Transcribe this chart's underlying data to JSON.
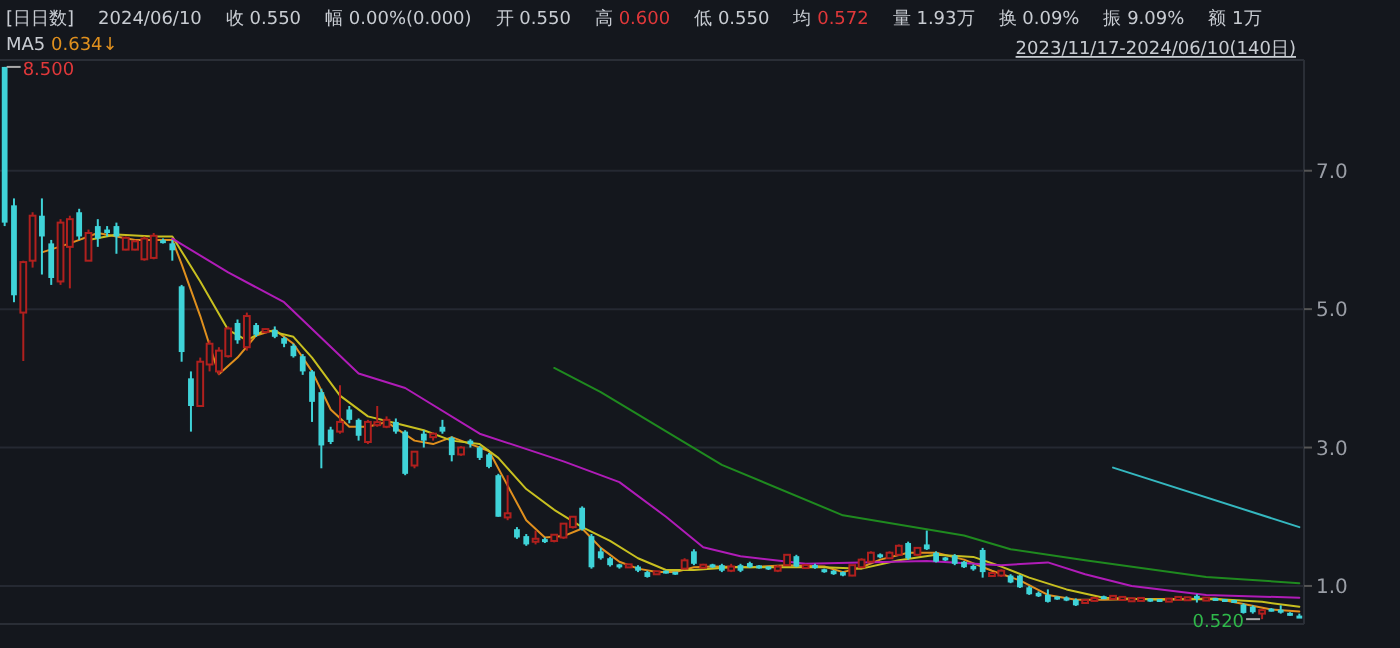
{
  "chart_data": {
    "type": "candlestick",
    "categories": [
      null,
      null,
      null,
      null,
      null,
      null,
      null,
      null,
      null,
      null,
      null,
      null,
      null,
      null,
      null,
      null,
      null,
      null,
      null,
      null,
      null,
      null,
      null,
      null,
      null,
      null,
      null,
      null,
      null,
      null,
      null,
      null,
      null,
      null,
      null,
      null,
      null,
      null,
      null,
      null,
      null,
      null,
      null,
      null,
      null,
      null,
      null,
      null,
      null,
      null,
      null,
      null,
      null,
      null,
      null,
      null,
      null,
      null,
      null,
      null,
      null,
      null,
      null,
      null,
      null,
      null,
      null,
      null,
      null,
      null,
      null,
      null,
      null,
      null,
      null,
      null,
      null,
      null,
      null,
      null,
      null,
      null,
      null,
      null,
      null,
      null,
      null,
      null,
      null,
      null,
      null,
      null,
      null,
      null,
      null,
      null,
      null,
      null,
      null,
      null,
      null,
      null,
      null,
      null,
      null,
      null,
      null,
      null,
      null,
      null,
      null,
      null,
      null,
      null,
      null,
      null,
      null,
      null,
      null,
      null,
      null,
      null,
      null,
      null,
      null,
      null,
      null,
      null,
      null,
      null,
      null,
      null,
      null,
      null,
      null,
      null,
      null,
      null,
      null,
      null
    ],
    "ohlc": [
      [
        8.5,
        8.5,
        6.2,
        6.25
      ],
      [
        6.5,
        6.6,
        5.1,
        5.2
      ],
      [
        4.95,
        5.7,
        4.25,
        5.68
      ],
      [
        5.7,
        6.4,
        5.6,
        6.35
      ],
      [
        6.35,
        6.6,
        5.5,
        6.05
      ],
      [
        5.95,
        6.0,
        5.35,
        5.45
      ],
      [
        5.4,
        6.3,
        5.35,
        6.25
      ],
      [
        5.9,
        6.35,
        5.3,
        6.3
      ],
      [
        6.4,
        6.45,
        6.0,
        6.05
      ],
      [
        5.7,
        6.15,
        5.7,
        6.1
      ],
      [
        6.2,
        6.3,
        5.9,
        6.02
      ],
      [
        6.15,
        6.2,
        6.05,
        6.1
      ],
      [
        6.2,
        6.25,
        5.8,
        6.05
      ],
      [
        5.86,
        6.05,
        5.85,
        6.03
      ],
      [
        5.86,
        6.0,
        5.85,
        5.98
      ],
      [
        5.72,
        6.05,
        5.7,
        6.02
      ],
      [
        5.74,
        6.1,
        5.72,
        6.06
      ],
      [
        5.98,
        6.02,
        5.95,
        5.97
      ],
      [
        5.95,
        6.0,
        5.7,
        5.85
      ],
      [
        5.33,
        5.35,
        4.24,
        4.38
      ],
      [
        4.0,
        4.1,
        3.23,
        3.6
      ],
      [
        3.6,
        4.3,
        3.6,
        4.24
      ],
      [
        4.2,
        4.55,
        4.1,
        4.5
      ],
      [
        4.1,
        4.45,
        4.05,
        4.4
      ],
      [
        4.32,
        4.75,
        4.3,
        4.72
      ],
      [
        4.8,
        4.85,
        4.5,
        4.55
      ],
      [
        4.45,
        4.95,
        4.4,
        4.9
      ],
      [
        4.77,
        4.8,
        4.6,
        4.63
      ],
      [
        4.68,
        4.72,
        4.65,
        4.7
      ],
      [
        4.7,
        4.75,
        4.58,
        4.6
      ],
      [
        4.58,
        4.6,
        4.45,
        4.5
      ],
      [
        4.47,
        4.5,
        4.3,
        4.32
      ],
      [
        4.32,
        4.35,
        4.05,
        4.1
      ],
      [
        4.1,
        4.12,
        3.37,
        3.66
      ],
      [
        3.8,
        3.85,
        2.7,
        3.03
      ],
      [
        3.26,
        3.3,
        3.05,
        3.08
      ],
      [
        3.23,
        3.9,
        3.2,
        3.37
      ],
      [
        3.55,
        3.6,
        3.35,
        3.4
      ],
      [
        3.4,
        3.42,
        3.1,
        3.17
      ],
      [
        3.08,
        3.4,
        3.05,
        3.37
      ],
      [
        3.33,
        3.6,
        3.3,
        3.36
      ],
      [
        3.3,
        3.45,
        3.28,
        3.4
      ],
      [
        3.37,
        3.42,
        3.2,
        3.23
      ],
      [
        3.23,
        3.25,
        2.6,
        2.62
      ],
      [
        2.74,
        2.95,
        2.7,
        2.94
      ],
      [
        3.2,
        3.25,
        3.0,
        3.1
      ],
      [
        3.15,
        3.22,
        3.1,
        3.2
      ],
      [
        3.3,
        3.4,
        3.2,
        3.23
      ],
      [
        3.14,
        3.16,
        2.8,
        2.89
      ],
      [
        2.9,
        3.02,
        2.88,
        3.0
      ],
      [
        3.1,
        3.12,
        3.0,
        3.05
      ],
      [
        3.0,
        3.02,
        2.82,
        2.85
      ],
      [
        2.9,
        2.92,
        2.7,
        2.72
      ],
      [
        2.6,
        2.62,
        2.0,
        2.0
      ],
      [
        1.99,
        2.6,
        1.95,
        2.05
      ],
      [
        1.82,
        1.85,
        1.68,
        1.7
      ],
      [
        1.72,
        1.75,
        1.58,
        1.6
      ],
      [
        1.65,
        1.8,
        1.6,
        1.67
      ],
      [
        1.66,
        1.7,
        1.62,
        1.65
      ],
      [
        1.65,
        1.75,
        1.63,
        1.74
      ],
      [
        1.7,
        1.9,
        1.68,
        1.9
      ],
      [
        1.85,
        2.0,
        1.83,
        2.0
      ],
      [
        2.13,
        2.15,
        1.8,
        1.82
      ],
      [
        1.72,
        1.75,
        1.25,
        1.27
      ],
      [
        1.5,
        1.55,
        1.38,
        1.4
      ],
      [
        1.4,
        1.42,
        1.28,
        1.3
      ],
      [
        1.3,
        1.32,
        1.25,
        1.28
      ],
      [
        1.28,
        1.32,
        1.26,
        1.3
      ],
      [
        1.28,
        1.3,
        1.2,
        1.22
      ],
      [
        1.2,
        1.22,
        1.12,
        1.13
      ],
      [
        1.18,
        1.22,
        1.17,
        1.2
      ],
      [
        1.2,
        1.22,
        1.18,
        1.2
      ],
      [
        1.19,
        1.2,
        1.16,
        1.18
      ],
      [
        1.25,
        1.4,
        1.24,
        1.37
      ],
      [
        1.5,
        1.53,
        1.3,
        1.32
      ],
      [
        1.27,
        1.32,
        1.25,
        1.3
      ],
      [
        1.3,
        1.32,
        1.26,
        1.28
      ],
      [
        1.3,
        1.32,
        1.2,
        1.22
      ],
      [
        1.22,
        1.32,
        1.2,
        1.28
      ],
      [
        1.3,
        1.32,
        1.2,
        1.22
      ],
      [
        1.33,
        1.35,
        1.26,
        1.27
      ],
      [
        1.28,
        1.3,
        1.25,
        1.27
      ],
      [
        1.27,
        1.28,
        1.23,
        1.25
      ],
      [
        1.22,
        1.3,
        1.2,
        1.28
      ],
      [
        1.3,
        1.45,
        1.29,
        1.45
      ],
      [
        1.43,
        1.45,
        1.27,
        1.28
      ],
      [
        1.26,
        1.32,
        1.25,
        1.3
      ],
      [
        1.3,
        1.32,
        1.25,
        1.26
      ],
      [
        1.24,
        1.25,
        1.19,
        1.2
      ],
      [
        1.22,
        1.23,
        1.16,
        1.17
      ],
      [
        1.2,
        1.21,
        1.14,
        1.15
      ],
      [
        1.15,
        1.3,
        1.14,
        1.3
      ],
      [
        1.27,
        1.4,
        1.26,
        1.38
      ],
      [
        1.35,
        1.5,
        1.34,
        1.48
      ],
      [
        1.45,
        1.47,
        1.4,
        1.42
      ],
      [
        1.4,
        1.5,
        1.39,
        1.48
      ],
      [
        1.45,
        1.6,
        1.44,
        1.58
      ],
      [
        1.62,
        1.64,
        1.38,
        1.4
      ],
      [
        1.45,
        1.56,
        1.44,
        1.55
      ],
      [
        1.6,
        1.8,
        1.52,
        1.53
      ],
      [
        1.48,
        1.5,
        1.34,
        1.35
      ],
      [
        1.4,
        1.42,
        1.36,
        1.38
      ],
      [
        1.44,
        1.46,
        1.3,
        1.32
      ],
      [
        1.35,
        1.36,
        1.26,
        1.27
      ],
      [
        1.29,
        1.31,
        1.22,
        1.24
      ],
      [
        1.52,
        1.55,
        1.12,
        1.2
      ],
      [
        1.15,
        1.2,
        1.14,
        1.18
      ],
      [
        1.15,
        1.24,
        1.13,
        1.22
      ],
      [
        1.15,
        1.17,
        1.04,
        1.05
      ],
      [
        1.15,
        1.16,
        0.97,
        0.98
      ],
      [
        0.98,
        1.0,
        0.87,
        0.88
      ],
      [
        0.9,
        0.92,
        0.84,
        0.85
      ],
      [
        0.87,
        0.95,
        0.76,
        0.77
      ],
      [
        0.83,
        0.85,
        0.8,
        0.82
      ],
      [
        0.83,
        0.85,
        0.78,
        0.79
      ],
      [
        0.8,
        0.82,
        0.71,
        0.72
      ],
      [
        0.76,
        0.8,
        0.75,
        0.79
      ],
      [
        0.79,
        0.83,
        0.78,
        0.82
      ],
      [
        0.84,
        0.86,
        0.81,
        0.82
      ],
      [
        0.82,
        0.86,
        0.81,
        0.85
      ],
      [
        0.81,
        0.85,
        0.8,
        0.83
      ],
      [
        0.79,
        0.83,
        0.78,
        0.81
      ],
      [
        0.8,
        0.82,
        0.79,
        0.81
      ],
      [
        0.81,
        0.82,
        0.77,
        0.78
      ],
      [
        0.8,
        0.81,
        0.77,
        0.78
      ],
      [
        0.79,
        0.82,
        0.78,
        0.8
      ],
      [
        0.8,
        0.85,
        0.79,
        0.84
      ],
      [
        0.8,
        0.84,
        0.79,
        0.83
      ],
      [
        0.85,
        0.88,
        0.76,
        0.82
      ],
      [
        0.8,
        0.83,
        0.79,
        0.82
      ],
      [
        0.81,
        0.82,
        0.79,
        0.8
      ],
      [
        0.8,
        0.81,
        0.77,
        0.78
      ],
      [
        0.78,
        0.8,
        0.76,
        0.77
      ],
      [
        0.73,
        0.75,
        0.6,
        0.61
      ],
      [
        0.7,
        0.72,
        0.6,
        0.62
      ],
      [
        0.6,
        0.66,
        0.52,
        0.65
      ],
      [
        0.66,
        0.68,
        0.63,
        0.64
      ],
      [
        0.65,
        0.72,
        0.6,
        0.62
      ],
      [
        0.6,
        0.62,
        0.57,
        0.58
      ],
      [
        0.55,
        0.6,
        0.55,
        0.55
      ]
    ],
    "series": [
      {
        "type": "line",
        "name": "MA5",
        "color": "#e0901e",
        "values": [
          null,
          null,
          null,
          null,
          5.82,
          null,
          null,
          5.95,
          null,
          null,
          6.1,
          null,
          null,
          null,
          6.0,
          null,
          null,
          null,
          6.0,
          5.65,
          null,
          4.9,
          null,
          4.06,
          null,
          4.3,
          null,
          4.62,
          null,
          4.7,
          null,
          4.5,
          null,
          4.1,
          null,
          3.55,
          null,
          3.3,
          null,
          3.3,
          null,
          3.37,
          null,
          null,
          3.1,
          null,
          3.05,
          null,
          3.15,
          null,
          3.05,
          null,
          2.95,
          null,
          2.45,
          null,
          1.95,
          null,
          1.7,
          null,
          1.72,
          null,
          1.83,
          null,
          1.55,
          null,
          1.35,
          null,
          1.25,
          null,
          1.2,
          null,
          1.2,
          null,
          1.27,
          null,
          1.28,
          null,
          null,
          null,
          1.27,
          null,
          null,
          null,
          1.3,
          null,
          null,
          null,
          1.28,
          null,
          1.2,
          null,
          1.27,
          null,
          1.38,
          null,
          null,
          1.48,
          null,
          null,
          1.48,
          null,
          null,
          1.38,
          null,
          null,
          1.22,
          null,
          null,
          1.08,
          null,
          null,
          0.87,
          null,
          null,
          0.8,
          null,
          null,
          0.8,
          null,
          null,
          null,
          0.81,
          null,
          null,
          null,
          0.81,
          null,
          null,
          null,
          0.82,
          null,
          null,
          0.74,
          null,
          null,
          0.66,
          null,
          null,
          0.63
        ]
      },
      {
        "type": "line",
        "color": "#c8c020",
        "values": [
          null,
          null,
          null,
          null,
          null,
          null,
          null,
          null,
          null,
          6.0,
          null,
          null,
          6.08,
          null,
          null,
          null,
          6.05,
          null,
          6.05,
          null,
          null,
          5.4,
          null,
          null,
          4.7,
          null,
          4.55,
          null,
          4.7,
          null,
          null,
          4.6,
          null,
          4.3,
          null,
          null,
          3.75,
          null,
          null,
          3.45,
          null,
          null,
          3.35,
          null,
          null,
          3.25,
          null,
          null,
          3.1,
          null,
          null,
          3.05,
          null,
          2.85,
          null,
          null,
          2.4,
          null,
          null,
          2.1,
          null,
          null,
          1.85,
          null,
          null,
          1.65,
          null,
          null,
          1.4,
          null,
          null,
          1.23,
          null,
          null,
          1.23,
          null,
          null,
          null,
          1.27,
          null,
          null,
          null,
          null,
          1.27,
          null,
          null,
          null,
          null,
          1.27,
          null,
          null,
          null,
          1.25,
          null,
          null,
          null,
          1.37,
          null,
          null,
          null,
          1.45,
          null,
          null,
          null,
          1.42,
          null,
          null,
          1.28,
          null,
          null,
          1.12,
          null,
          null,
          null,
          0.95,
          null,
          null,
          null,
          0.83,
          null,
          null,
          null,
          null,
          null,
          0.8,
          null,
          null,
          null,
          null,
          null,
          0.81,
          null,
          null,
          null,
          null,
          0.77,
          null,
          null,
          null,
          0.7
        ]
      },
      {
        "type": "line",
        "color": "#b01cb8",
        "values": [
          null,
          null,
          null,
          null,
          null,
          null,
          null,
          null,
          null,
          null,
          null,
          null,
          null,
          null,
          null,
          null,
          null,
          null,
          6.02,
          null,
          null,
          null,
          null,
          null,
          5.53,
          null,
          null,
          null,
          null,
          null,
          5.1,
          null,
          null,
          null,
          null,
          null,
          null,
          null,
          4.07,
          null,
          null,
          null,
          null,
          3.86,
          null,
          null,
          null,
          null,
          null,
          null,
          null,
          3.2,
          null,
          null,
          null,
          null,
          null,
          null,
          null,
          null,
          2.8,
          null,
          null,
          null,
          null,
          null,
          2.5,
          null,
          null,
          null,
          null,
          2.0,
          null,
          null,
          null,
          1.56,
          null,
          null,
          null,
          1.43,
          null,
          null,
          null,
          null,
          null,
          null,
          1.32,
          null,
          null,
          null,
          null,
          null,
          null,
          null,
          null,
          null,
          null,
          null,
          null,
          1.36,
          null,
          null,
          null,
          null,
          null,
          null,
          null,
          1.3,
          null,
          null,
          null,
          null,
          1.34,
          null,
          null,
          null,
          1.17,
          null,
          null,
          null,
          null,
          1.0,
          null,
          null,
          null,
          null,
          null,
          null,
          null,
          0.87,
          null,
          null,
          null,
          null,
          null,
          null,
          null,
          null,
          null,
          0.83
        ]
      },
      {
        "type": "line",
        "color": "#1f8a1f",
        "values": [
          null,
          null,
          null,
          null,
          null,
          null,
          null,
          null,
          null,
          null,
          null,
          null,
          null,
          null,
          null,
          null,
          null,
          null,
          null,
          null,
          null,
          null,
          null,
          null,
          null,
          null,
          null,
          null,
          null,
          null,
          null,
          null,
          null,
          null,
          null,
          null,
          null,
          null,
          null,
          null,
          null,
          null,
          null,
          null,
          null,
          null,
          null,
          null,
          null,
          null,
          null,
          null,
          null,
          null,
          null,
          null,
          null,
          null,
          null,
          4.15,
          null,
          null,
          null,
          null,
          3.8,
          null,
          null,
          null,
          null,
          null,
          null,
          null,
          null,
          null,
          null,
          null,
          null,
          2.75,
          null,
          null,
          null,
          null,
          null,
          null,
          null,
          null,
          null,
          null,
          null,
          null,
          2.02,
          null,
          null,
          null,
          null,
          null,
          null,
          null,
          null,
          null,
          null,
          null,
          null,
          1.73,
          null,
          null,
          null,
          null,
          1.53,
          null,
          null,
          null,
          null,
          null,
          null,
          null,
          1.37,
          null,
          null,
          null,
          null,
          null,
          null,
          null,
          null,
          null,
          null,
          null,
          null,
          1.13,
          null,
          null,
          null,
          null,
          null,
          null,
          null,
          null,
          null,
          1.04
        ]
      },
      {
        "type": "line",
        "color": "#35b8c0",
        "values": [
          null,
          null,
          null,
          null,
          null,
          null,
          null,
          null,
          null,
          null,
          null,
          null,
          null,
          null,
          null,
          null,
          null,
          null,
          null,
          null,
          null,
          null,
          null,
          null,
          null,
          null,
          null,
          null,
          null,
          null,
          null,
          null,
          null,
          null,
          null,
          null,
          null,
          null,
          null,
          null,
          null,
          null,
          null,
          null,
          null,
          null,
          null,
          null,
          null,
          null,
          null,
          null,
          null,
          null,
          null,
          null,
          null,
          null,
          null,
          null,
          null,
          null,
          null,
          null,
          null,
          null,
          null,
          null,
          null,
          null,
          null,
          null,
          null,
          null,
          null,
          null,
          null,
          null,
          null,
          null,
          null,
          null,
          null,
          null,
          null,
          null,
          null,
          null,
          null,
          null,
          null,
          null,
          null,
          null,
          null,
          null,
          null,
          null,
          null,
          null,
          null,
          null,
          null,
          null,
          null,
          null,
          null,
          null,
          null,
          null,
          null,
          null,
          null,
          null,
          null,
          null,
          null,
          null,
          null,
          2.71,
          null,
          null,
          null,
          null,
          null,
          null,
          null,
          null,
          null,
          null,
          null,
          null,
          null,
          null,
          null,
          null,
          null,
          null,
          null,
          1.85
        ]
      }
    ],
    "ylim": [
      0.45,
      8.6
    ],
    "yticks": [
      {
        "value": 1,
        "label": "1.0"
      },
      {
        "value": 3,
        "label": "3.0"
      },
      {
        "value": 5,
        "label": "5.0"
      },
      {
        "value": 7,
        "label": "7.0"
      }
    ],
    "grid": "y",
    "tick_labels": "y",
    "legend": "top left",
    "annotations": [
      "[日日数]",
      "2024/06/10",
      "收 0.550",
      "幅 0.00%(0.000)",
      "开 0.550",
      "高 0.600",
      "低 0.550",
      "均 0.572",
      "量 1.93万",
      "换 0.09%",
      "振 9.09%",
      "额 1万",
      "2023/11/17-2024/06/10(140日)",
      "8.500",
      "0.520",
      "0.634↓"
    ]
  }
}
